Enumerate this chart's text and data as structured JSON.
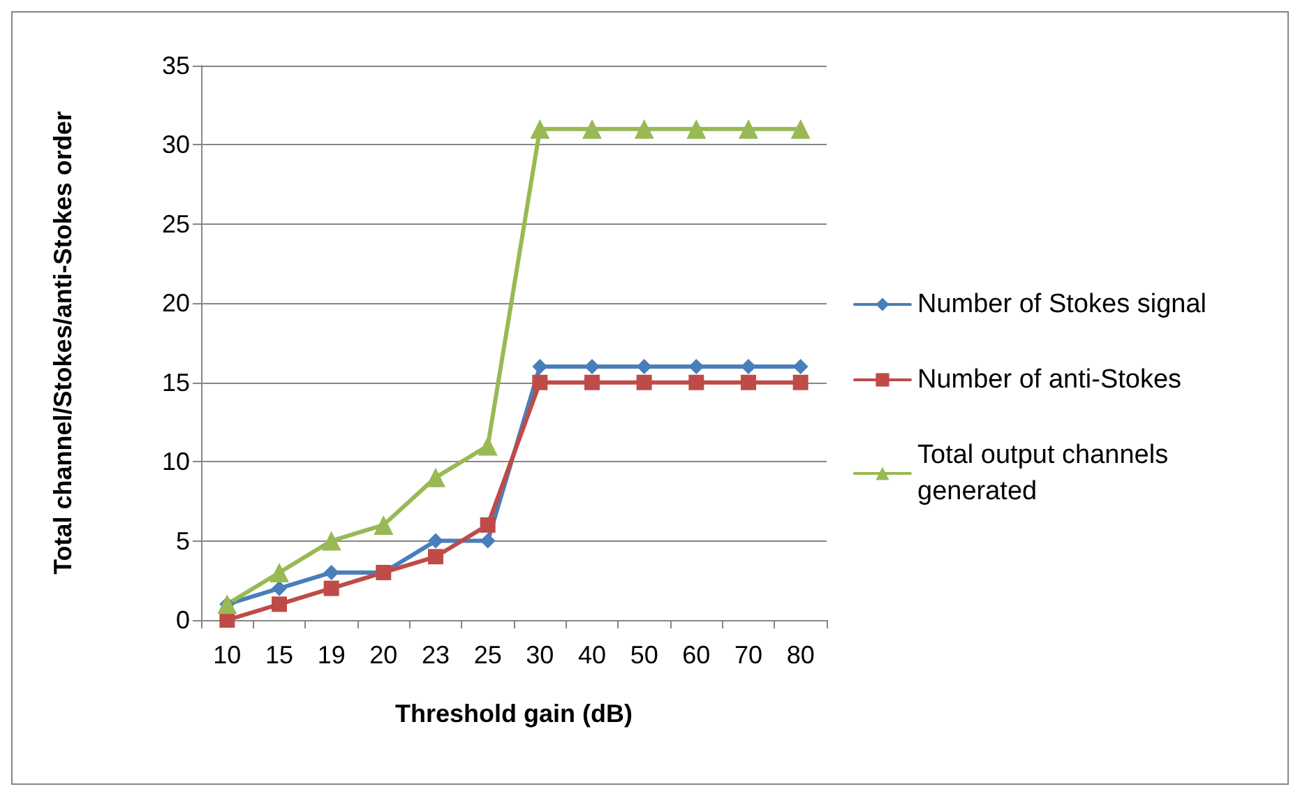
{
  "chart_data": {
    "type": "line",
    "xlabel": "Threshold gain (dB)",
    "ylabel": "Total channel/Stokes/anti-Stokes order",
    "categories": [
      "10",
      "15",
      "19",
      "20",
      "23",
      "25",
      "30",
      "40",
      "50",
      "60",
      "70",
      "80"
    ],
    "series": [
      {
        "name": "Number of Stokes signal",
        "color": "#4a7ebb",
        "marker": "diamond",
        "values": [
          1,
          2,
          3,
          3,
          5,
          5,
          16,
          16,
          16,
          16,
          16,
          16
        ]
      },
      {
        "name": "Number of anti-Stokes",
        "color": "#be4b48",
        "marker": "square",
        "values": [
          0,
          1,
          2,
          3,
          4,
          6,
          15,
          15,
          15,
          15,
          15,
          15
        ]
      },
      {
        "name": "Total output channels generated",
        "color": "#98b954",
        "marker": "triangle",
        "values": [
          1,
          3,
          5,
          6,
          9,
          11,
          31,
          31,
          31,
          31,
          31,
          31
        ]
      }
    ],
    "ylim": [
      0,
      35
    ],
    "yticks": [
      0,
      5,
      10,
      15,
      20,
      25,
      30,
      35
    ],
    "grid": "y",
    "legend": "right",
    "line_style": "solid"
  }
}
